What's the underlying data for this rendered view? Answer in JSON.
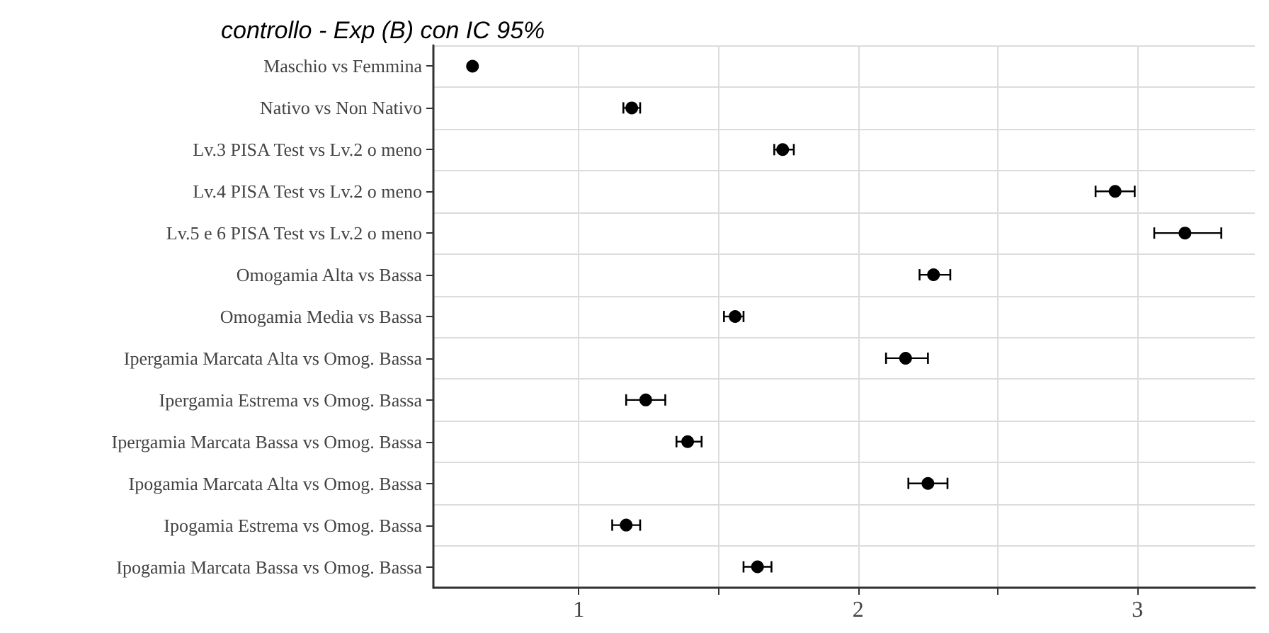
{
  "chart_data": {
    "type": "scatter",
    "orientation": "horizontal",
    "title": "controllo - Exp (B) con IC 95%",
    "categories": [
      "Maschio vs Femmina",
      "Nativo vs Non Nativo",
      "Lv.3 PISA Test vs Lv.2 o meno",
      "Lv.4 PISA Test vs Lv.2 o meno",
      "Lv.5 e 6 PISA Test vs Lv.2 o meno",
      "Omogamia Alta vs Bassa",
      "Omogamia Media vs Bassa",
      "Ipergamia Marcata Alta vs Omog. Bassa",
      "Ipergamia Estrema vs Omog. Bassa",
      "Ipergamia Marcata Bassa vs Omog. Bassa",
      "Ipogamia Marcata Alta vs Omog. Bassa",
      "Ipogamia Estrema vs Omog. Bassa",
      "Ipogamia Marcata Bassa vs Omog. Bassa"
    ],
    "values": [
      0.62,
      1.19,
      1.73,
      2.92,
      3.17,
      2.27,
      1.56,
      2.17,
      1.24,
      1.39,
      2.25,
      1.17,
      1.64
    ],
    "errors": [
      null,
      [
        1.16,
        1.22
      ],
      [
        1.7,
        1.77
      ],
      [
        2.85,
        2.99
      ],
      [
        3.06,
        3.3
      ],
      [
        2.22,
        2.33
      ],
      [
        1.52,
        1.59
      ],
      [
        2.1,
        2.25
      ],
      [
        1.17,
        1.31
      ],
      [
        1.35,
        1.44
      ],
      [
        2.18,
        2.32
      ],
      [
        1.12,
        1.22
      ],
      [
        1.59,
        1.69
      ]
    ],
    "color": "#000000",
    "marker": "circle",
    "xlim": [
      0.48,
      3.42
    ],
    "xticks": [
      1,
      {
        "value": 1.5,
        "label": null
      },
      2,
      {
        "value": 2.5,
        "label": null
      },
      3
    ],
    "grid": true
  }
}
